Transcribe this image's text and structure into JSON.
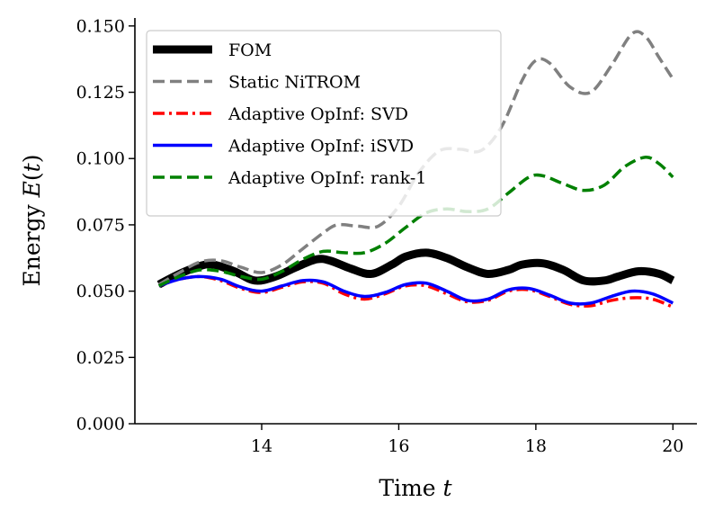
{
  "chart_data": {
    "type": "line",
    "title": "",
    "xlabel": "Time t",
    "ylabel": "Energy E(t)",
    "xlim": [
      12.15,
      20.35
    ],
    "ylim": [
      0.0,
      0.153
    ],
    "xticks": [
      14,
      16,
      18,
      20
    ],
    "yticks": [
      0.0,
      0.025,
      0.05,
      0.075,
      0.1,
      0.125,
      0.15
    ],
    "xtick_labels": [
      "14",
      "16",
      "18",
      "20"
    ],
    "ytick_labels": [
      "0.000",
      "0.025",
      "0.050",
      "0.075",
      "0.100",
      "0.125",
      "0.150"
    ],
    "legend_position": "upper-left",
    "series": [
      {
        "name": "FOM",
        "color": "#000000",
        "style": "solid-thick",
        "x": [
          12.5,
          12.8,
          13.1,
          13.3,
          13.6,
          13.9,
          14.2,
          14.5,
          14.8,
          15.0,
          15.3,
          15.6,
          15.9,
          16.1,
          16.4,
          16.7,
          17.0,
          17.3,
          17.6,
          17.8,
          18.1,
          18.4,
          18.7,
          19.0,
          19.2,
          19.5,
          19.8,
          20.0
        ],
        "y": [
          0.0525,
          0.0565,
          0.0595,
          0.06,
          0.0575,
          0.054,
          0.0555,
          0.059,
          0.062,
          0.0615,
          0.0585,
          0.0565,
          0.06,
          0.063,
          0.0645,
          0.0625,
          0.059,
          0.0565,
          0.058,
          0.06,
          0.0605,
          0.058,
          0.054,
          0.054,
          0.0555,
          0.0575,
          0.0565,
          0.054
        ]
      },
      {
        "name": "Static NiTROM",
        "color": "#808080",
        "style": "dashed",
        "x": [
          12.5,
          12.8,
          13.1,
          13.4,
          13.7,
          14.0,
          14.3,
          14.6,
          14.9,
          15.1,
          15.4,
          15.7,
          16.0,
          16.3,
          16.6,
          16.9,
          17.2,
          17.5,
          17.8,
          18.0,
          18.2,
          18.5,
          18.8,
          19.1,
          19.4,
          19.6,
          19.8,
          20.0
        ],
        "y": [
          0.0525,
          0.057,
          0.061,
          0.0615,
          0.059,
          0.057,
          0.06,
          0.066,
          0.072,
          0.075,
          0.0745,
          0.0745,
          0.082,
          0.095,
          0.103,
          0.1035,
          0.103,
          0.112,
          0.1295,
          0.137,
          0.136,
          0.127,
          0.125,
          0.135,
          0.147,
          0.146,
          0.138,
          0.13
        ]
      },
      {
        "name": "Adaptive OpInf: SVD",
        "color": "#ff0000",
        "style": "dashdot",
        "x": [
          12.5,
          12.8,
          13.1,
          13.4,
          13.7,
          14.0,
          14.3,
          14.6,
          14.9,
          15.2,
          15.5,
          15.8,
          16.1,
          16.4,
          16.7,
          17.0,
          17.3,
          17.6,
          17.9,
          18.2,
          18.5,
          18.8,
          19.1,
          19.4,
          19.7,
          20.0
        ],
        "y": [
          0.052,
          0.0545,
          0.0555,
          0.054,
          0.051,
          0.0495,
          0.0515,
          0.0535,
          0.053,
          0.049,
          0.047,
          0.049,
          0.052,
          0.052,
          0.049,
          0.046,
          0.0465,
          0.05,
          0.0505,
          0.048,
          0.045,
          0.0445,
          0.0465,
          0.0475,
          0.047,
          0.044
        ]
      },
      {
        "name": "Adaptive OpInf: iSVD",
        "color": "#0000ff",
        "style": "solid",
        "x": [
          12.5,
          12.8,
          13.1,
          13.4,
          13.7,
          14.0,
          14.3,
          14.6,
          14.9,
          15.2,
          15.5,
          15.8,
          16.1,
          16.4,
          16.7,
          17.0,
          17.3,
          17.6,
          17.9,
          18.2,
          18.5,
          18.8,
          19.1,
          19.4,
          19.7,
          20.0
        ],
        "y": [
          0.052,
          0.0545,
          0.0555,
          0.0545,
          0.0515,
          0.05,
          0.052,
          0.054,
          0.0535,
          0.05,
          0.048,
          0.0495,
          0.0525,
          0.053,
          0.05,
          0.0465,
          0.047,
          0.0505,
          0.051,
          0.0485,
          0.0455,
          0.0455,
          0.048,
          0.05,
          0.049,
          0.0455
        ]
      },
      {
        "name": "Adaptive OpInf: rank-1",
        "color": "#008000",
        "style": "dashed",
        "x": [
          12.5,
          12.8,
          13.1,
          13.4,
          13.7,
          14.0,
          14.3,
          14.6,
          14.9,
          15.2,
          15.5,
          15.8,
          16.1,
          16.4,
          16.7,
          17.0,
          17.3,
          17.6,
          17.9,
          18.1,
          18.4,
          18.7,
          19.0,
          19.3,
          19.6,
          19.8,
          20.0
        ],
        "y": [
          0.052,
          0.0555,
          0.058,
          0.0575,
          0.0555,
          0.0545,
          0.0575,
          0.062,
          0.065,
          0.0645,
          0.0645,
          0.068,
          0.074,
          0.0795,
          0.081,
          0.08,
          0.081,
          0.087,
          0.093,
          0.0935,
          0.0905,
          0.088,
          0.09,
          0.097,
          0.1005,
          0.098,
          0.093
        ]
      }
    ]
  }
}
